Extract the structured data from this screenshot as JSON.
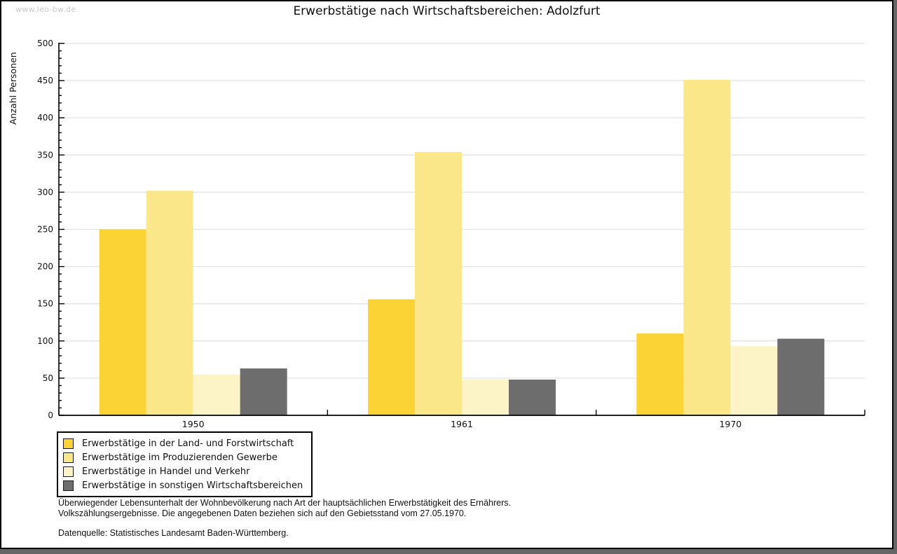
{
  "watermark": "www.leo-bw.de",
  "chart_data": {
    "type": "bar",
    "title": "Erwerbstätige nach Wirtschaftsbereichen: Adolzfurt",
    "ylabel": "Anzahl Personen",
    "xlabel": "",
    "ylim": [
      0,
      500
    ],
    "y_major_step": 50,
    "y_minor_step": 10,
    "grid": true,
    "legend_position": "bottom-left",
    "categories": [
      "1950",
      "1961",
      "1970"
    ],
    "series": [
      {
        "name": "Erwerbstätige in der Land- und Forstwirtschaft",
        "color": "#fbd334",
        "values": [
          250,
          156,
          110
        ]
      },
      {
        "name": "Erwerbstätige im Produzierenden Gewerbe",
        "color": "#fae78a",
        "values": [
          302,
          354,
          451
        ]
      },
      {
        "name": "Erwerbstätige in Handel und Verkehr",
        "color": "#fcf4c6",
        "values": [
          55,
          48,
          93
        ]
      },
      {
        "name": "Erwerbstätige in sonstigen Wirtschaftsbereichen",
        "color": "#6d6d6d",
        "values": [
          63,
          48,
          103
        ]
      }
    ]
  },
  "footnotes": {
    "line1": "Überwiegender Lebensunterhalt der Wohnbevölkerung nach Art der hauptsächlichen Erwerbstätigkeit des Ernährers.",
    "line2": "Volkszählungsergebnisse. Die angegebenen Daten beziehen sich auf den Gebietsstand vom 27.05.1970.",
    "source": "Datenquelle: Statistisches Landesamt Baden-Württemberg."
  },
  "colors": {
    "grid": "#e3e3e3",
    "axis": "#000000",
    "text": "#111111",
    "watermark": "#c9c9c9",
    "frame_outer": "#666666"
  }
}
